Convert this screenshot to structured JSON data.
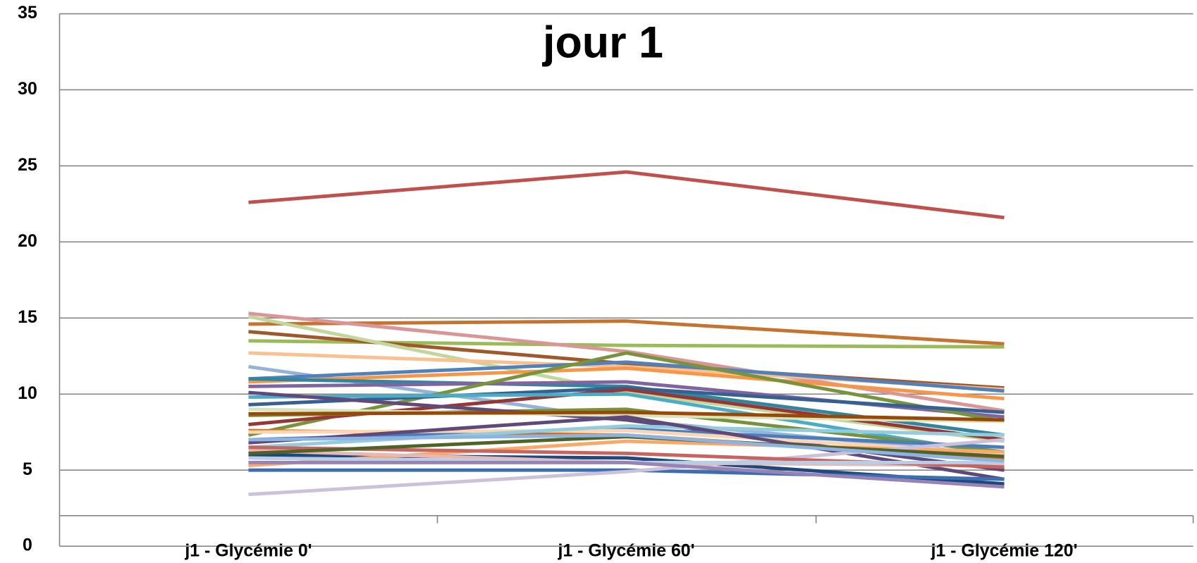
{
  "chart_data": {
    "type": "line",
    "title": "jour 1",
    "categories": [
      "j1 - Glycémie 0'",
      "j1 - Glycémie 60'",
      "j1 - Glycémie 120'"
    ],
    "ylim": [
      0,
      35
    ],
    "yticks": [
      0,
      5,
      10,
      15,
      20,
      25,
      30,
      35
    ],
    "grid": true,
    "series": [
      {
        "color": "#c0504d",
        "values": [
          22.6,
          24.6,
          21.6
        ]
      },
      {
        "color": "#c5732f",
        "values": [
          14.6,
          14.8,
          13.3
        ]
      },
      {
        "color": "#9bbb59",
        "values": [
          13.5,
          13.2,
          13.1
        ]
      },
      {
        "color": "#a0582b",
        "values": [
          14.1,
          12.0,
          10.4
        ]
      },
      {
        "color": "#d99694",
        "values": [
          15.3,
          12.8,
          8.9
        ]
      },
      {
        "color": "#c3d69b",
        "values": [
          15.1,
          10.1,
          6.9
        ]
      },
      {
        "color": "#fac090",
        "values": [
          12.7,
          11.8,
          10.3
        ]
      },
      {
        "color": "#95b3d7",
        "values": [
          11.8,
          8.3,
          6.0
        ]
      },
      {
        "color": "#f79646",
        "values": [
          10.8,
          11.7,
          9.7
        ]
      },
      {
        "color": "#4f81bd",
        "values": [
          11.0,
          12.1,
          10.2
        ]
      },
      {
        "color": "#31859c",
        "values": [
          11.0,
          10.5,
          7.3
        ]
      },
      {
        "color": "#8064a2",
        "values": [
          10.5,
          10.8,
          8.5
        ]
      },
      {
        "color": "#77933c",
        "values": [
          7.3,
          12.7,
          8.2
        ]
      },
      {
        "color": "#366092",
        "values": [
          9.3,
          10.4,
          8.8
        ]
      },
      {
        "color": "#953735",
        "values": [
          8.0,
          10.3,
          7.0
        ]
      },
      {
        "color": "#4bacc6",
        "values": [
          9.8,
          10.0,
          6.0
        ]
      },
      {
        "color": "#76923c",
        "values": [
          8.6,
          9.0,
          6.2
        ]
      },
      {
        "color": "#604a7b",
        "values": [
          10.1,
          8.3,
          5.0
        ]
      },
      {
        "color": "#d7e4bd",
        "values": [
          9.0,
          8.6,
          8.2
        ]
      },
      {
        "color": "#e46c0a",
        "values": [
          7.6,
          7.3,
          5.7
        ]
      },
      {
        "color": "#4a7ebb",
        "values": [
          7.0,
          7.7,
          6.5
        ]
      },
      {
        "color": "#fcd5b5",
        "values": [
          7.5,
          7.6,
          6.1
        ]
      },
      {
        "color": "#93cddd",
        "values": [
          6.5,
          7.9,
          7.3
        ]
      },
      {
        "color": "#5f497a",
        "values": [
          6.8,
          8.5,
          4.4
        ]
      },
      {
        "color": "#1f497d",
        "values": [
          6.0,
          5.8,
          4.1
        ]
      },
      {
        "color": "#3c6eb4",
        "values": [
          5.0,
          5.0,
          4.4
        ]
      },
      {
        "color": "#f9a86a",
        "values": [
          5.3,
          6.9,
          6.2
        ]
      },
      {
        "color": "#ccc1da",
        "values": [
          3.4,
          4.9,
          7.0
        ]
      },
      {
        "color": "#e6b9b8",
        "values": [
          6.3,
          5.5,
          5.3
        ]
      },
      {
        "color": "#c86360",
        "values": [
          6.5,
          6.1,
          5.2
        ]
      },
      {
        "color": "#4f6228",
        "values": [
          6.1,
          7.2,
          5.9
        ]
      },
      {
        "color": "#b9cde5",
        "values": [
          5.8,
          5.5,
          5.5
        ]
      },
      {
        "color": "#9983b5",
        "values": [
          5.5,
          5.5,
          3.9
        ]
      },
      {
        "color": "#984807",
        "values": [
          8.7,
          8.8,
          8.3
        ]
      },
      {
        "color": "#8db3e2",
        "values": [
          7.0,
          7.3,
          5.6
        ]
      }
    ]
  }
}
